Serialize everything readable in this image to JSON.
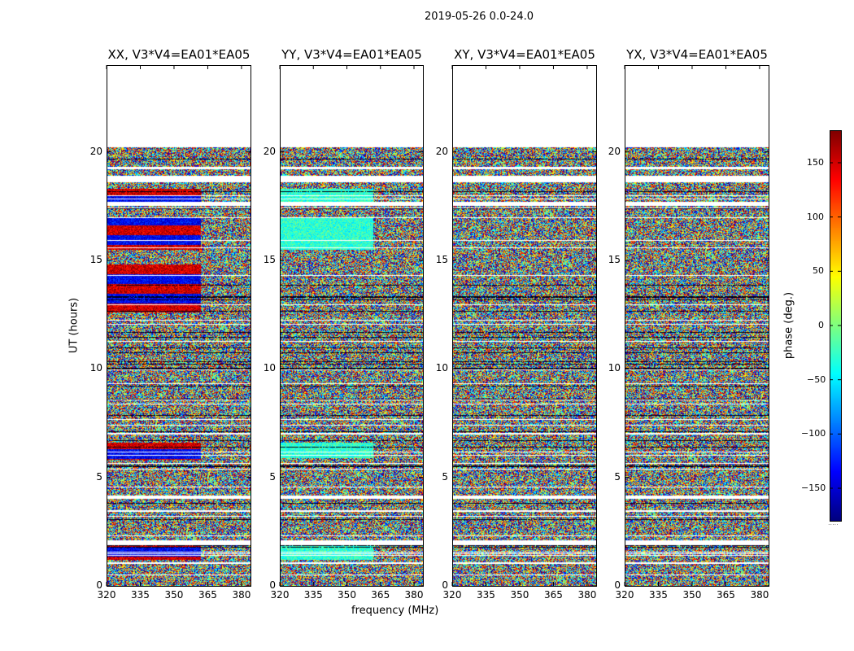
{
  "chart_data": {
    "type": "heatmap",
    "suptitle": "2019-05-26 0.0-24.0",
    "ylabel": "UT (hours)",
    "xlabel": "frequency (MHz)",
    "colorbar_label": "phase (deg.)",
    "colormap": "jet",
    "x_range": [
      320,
      384
    ],
    "y_range": [
      0,
      24
    ],
    "x_ticks": [
      320,
      335,
      350,
      365,
      380
    ],
    "y_ticks": [
      0,
      5,
      10,
      15,
      20
    ],
    "data_time_range_hours": [
      0,
      20.2
    ],
    "colorbar_range": [
      -180,
      180
    ],
    "colorbar_ticks": [
      {
        "value": 150,
        "label": "150"
      },
      {
        "value": 100,
        "label": "100"
      },
      {
        "value": 50,
        "label": "50"
      },
      {
        "value": 0,
        "label": "0"
      },
      {
        "value": -50,
        "label": "−50"
      },
      {
        "value": -100,
        "label": "−100"
      },
      {
        "value": -150,
        "label": "−150"
      }
    ],
    "panels": [
      {
        "title": "XX, V3*V4=EA01*EA05",
        "coherent_bands_hours": [
          [
            1.2,
            1.9
          ],
          [
            5.8,
            6.6
          ],
          [
            12.6,
            14.8
          ],
          [
            15.5,
            17.0
          ],
          [
            17.7,
            18.3
          ]
        ]
      },
      {
        "title": "YY, V3*V4=EA01*EA05",
        "coherent_bands_hours": [
          [
            1.2,
            1.9
          ],
          [
            5.9,
            6.6
          ],
          [
            15.5,
            17.0
          ],
          [
            17.7,
            18.3
          ]
        ]
      },
      {
        "title": "XY, V3*V4=EA01*EA05",
        "coherent_bands_hours": []
      },
      {
        "title": "YX, V3*V4=EA01*EA05",
        "coherent_bands_hours": []
      }
    ]
  },
  "colors": {
    "axes": "#000000",
    "background": "#ffffff",
    "flagged": "#ffffff"
  },
  "cb_dots": "....."
}
